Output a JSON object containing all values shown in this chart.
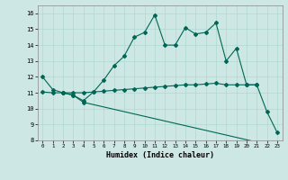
{
  "xlabel": "Humidex (Indice chaleur)",
  "bg_color": "#cde8e4",
  "grid_color": "#b0d8d0",
  "line_color": "#006655",
  "ylim": [
    8,
    16.5
  ],
  "xlim": [
    -0.5,
    23.5
  ],
  "yticks": [
    8,
    9,
    10,
    11,
    12,
    13,
    14,
    15,
    16
  ],
  "xticks": [
    0,
    1,
    2,
    3,
    4,
    5,
    6,
    7,
    8,
    9,
    10,
    11,
    12,
    13,
    14,
    15,
    16,
    17,
    18,
    19,
    20,
    21,
    22,
    23
  ],
  "line1_x": [
    0,
    1,
    2,
    3,
    4,
    5,
    6,
    7,
    8,
    9,
    10,
    11,
    12,
    13,
    14,
    15,
    16,
    17,
    18,
    19,
    20,
    21,
    22,
    23
  ],
  "line1_y": [
    12.0,
    11.2,
    11.0,
    10.85,
    10.5,
    11.05,
    11.8,
    12.7,
    13.3,
    14.5,
    14.8,
    15.9,
    14.0,
    14.0,
    15.1,
    14.7,
    14.8,
    15.4,
    13.0,
    13.8,
    11.5,
    11.5,
    9.8,
    8.5
  ],
  "line2_x": [
    0,
    1,
    2,
    3,
    4,
    5,
    6,
    7,
    8,
    9,
    10,
    11,
    12,
    13,
    14,
    15,
    16,
    17,
    18,
    19,
    20,
    21
  ],
  "line2_y": [
    11.05,
    11.0,
    11.0,
    11.0,
    11.0,
    11.05,
    11.1,
    11.15,
    11.2,
    11.25,
    11.3,
    11.35,
    11.4,
    11.45,
    11.5,
    11.5,
    11.55,
    11.6,
    11.5,
    11.5,
    11.5,
    11.5
  ],
  "line3_x": [
    2,
    3,
    4,
    23
  ],
  "line3_y": [
    11.0,
    10.85,
    10.4,
    7.6
  ]
}
